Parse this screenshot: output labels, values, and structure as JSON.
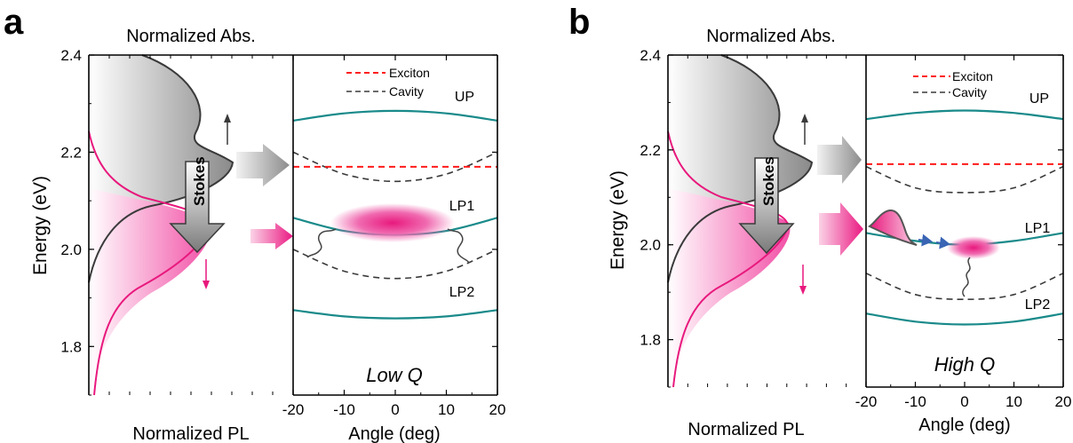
{
  "chart_data": [
    {
      "type": "line",
      "panel_label": "a",
      "quality_label": "Low Q",
      "spectra": {
        "abs_title": "Normalized Abs.",
        "pl_label": "Normalized PL",
        "ylabel": "Energy (eV)",
        "ylim": [
          1.7,
          2.4
        ],
        "yticks": [
          "1.8",
          "2.0",
          "2.2",
          "2.4"
        ],
        "abs_peak_energy": 2.17,
        "pl_peak_energy": 2.04,
        "stokes_label": "Stokes"
      },
      "dispersion": {
        "xlabel": "Angle (deg)",
        "xlim": [
          -20,
          20
        ],
        "xticks": [
          "-20",
          "-10",
          "0",
          "10",
          "20"
        ],
        "legend": [
          "Exciton",
          "Cavity"
        ],
        "legend_position": "top",
        "exciton_energy": 2.17,
        "series": [
          {
            "name": "UP",
            "x": [
              -20,
              -10,
              0,
              10,
              20
            ],
            "y": [
              2.265,
              2.28,
              2.285,
              2.28,
              2.265
            ]
          },
          {
            "name": "LP1",
            "x": [
              -20,
              -10,
              0,
              10,
              20
            ],
            "y": [
              2.065,
              2.038,
              2.03,
              2.038,
              2.065
            ]
          },
          {
            "name": "LP2",
            "x": [
              -20,
              -10,
              0,
              10,
              20
            ],
            "y": [
              1.875,
              1.862,
              1.858,
              1.862,
              1.875
            ]
          }
        ],
        "cavity_modes": [
          {
            "x": [
              -20,
              -10,
              0,
              10,
              20
            ],
            "y": [
              2.2,
              2.155,
              2.14,
              2.155,
              2.2
            ]
          },
          {
            "x": [
              -20,
              -10,
              0,
              10,
              20
            ],
            "y": [
              2.0,
              1.955,
              1.94,
              1.955,
              2.0
            ]
          }
        ],
        "emission_blob": {
          "x_range": [
            -12,
            12
          ],
          "energy": 2.045
        }
      }
    },
    {
      "type": "line",
      "panel_label": "b",
      "quality_label": "High Q",
      "spectra": {
        "abs_title": "Normalized Abs.",
        "pl_label": "Normalized PL",
        "ylabel": "Energy (eV)",
        "ylim": [
          1.7,
          2.4
        ],
        "yticks": [
          "1.8",
          "2.0",
          "2.2",
          "2.4"
        ],
        "abs_peak_energy": 2.17,
        "pl_peak_energy": 2.04,
        "stokes_label": "Stokes"
      },
      "dispersion": {
        "xlabel": "Angle (deg)",
        "xlim": [
          -20,
          20
        ],
        "xticks": [
          "-20",
          "-10",
          "0",
          "10",
          "20"
        ],
        "legend": [
          "Exciton",
          "Cavity"
        ],
        "legend_position": "top",
        "exciton_energy": 2.17,
        "series": [
          {
            "name": "UP",
            "x": [
              -20,
              -10,
              0,
              10,
              20
            ],
            "y": [
              2.265,
              2.278,
              2.283,
              2.278,
              2.265
            ]
          },
          {
            "name": "LP1",
            "x": [
              -20,
              -10,
              0,
              10,
              20
            ],
            "y": [
              2.025,
              2.008,
              2.0,
              2.008,
              2.025
            ]
          },
          {
            "name": "LP2",
            "x": [
              -20,
              -10,
              0,
              10,
              20
            ],
            "y": [
              1.855,
              1.838,
              1.832,
              1.838,
              1.855
            ]
          }
        ],
        "cavity_modes": [
          {
            "x": [
              -20,
              -10,
              0,
              10,
              20
            ],
            "y": [
              2.165,
              2.12,
              2.11,
              2.12,
              2.165
            ]
          },
          {
            "x": [
              -20,
              -10,
              0,
              10,
              20
            ],
            "y": [
              1.94,
              1.895,
              1.885,
              1.895,
              1.94
            ]
          }
        ],
        "emission_blob": {
          "x_range": [
            -5,
            5
          ],
          "energy": 2.0
        }
      }
    }
  ],
  "colors": {
    "abs_curve": "#3a3a3a",
    "pl_curve": "#e8197d",
    "polariton": "#1a8a8a",
    "exciton_line": "#ff1a1a",
    "cavity_line": "#3a3a3a",
    "relaxation_arrow": "#3a64b4",
    "axis": "#000000"
  }
}
